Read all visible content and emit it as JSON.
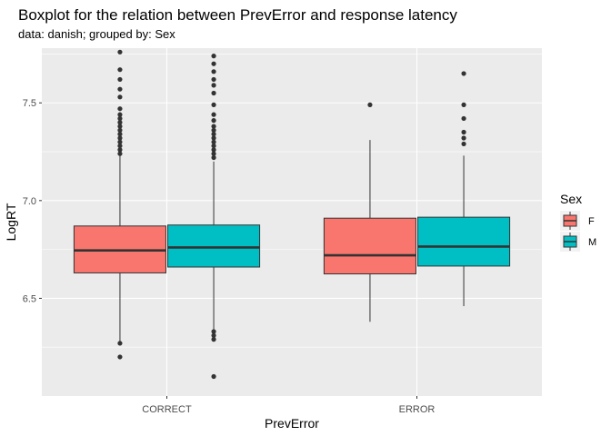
{
  "chart_data": {
    "type": "boxplot",
    "title": "Boxplot for the relation between PrevError and response latency",
    "subtitle": "data: danish; grouped by: Sex",
    "xlabel": "PrevError",
    "ylabel": "LogRT",
    "categories": [
      "CORRECT",
      "ERROR"
    ],
    "ylim": [
      6.0,
      7.78
    ],
    "yticks": [
      6.5,
      7.0,
      7.5
    ],
    "ytick_labels": [
      "6.5",
      "7.0",
      "7.5"
    ],
    "legend": {
      "title": "Sex",
      "position": "right"
    },
    "colors": {
      "panel": "#ebebeb",
      "grid": "#ffffff",
      "outline": "#333333",
      "F": "#f8766d",
      "M": "#00bfc4"
    },
    "series": [
      {
        "name": "F",
        "color": "#f8766d",
        "boxes": [
          {
            "category": "CORRECT",
            "q1": 6.63,
            "median": 6.745,
            "q3": 6.87,
            "whisker_low": 6.27,
            "whisker_high": 7.23,
            "outliers": [
              6.27,
              6.2,
              7.24,
              7.26,
              7.28,
              7.3,
              7.32,
              7.34,
              7.36,
              7.38,
              7.4,
              7.42,
              7.44,
              7.47,
              7.53,
              7.57,
              7.62,
              7.67,
              7.76
            ]
          },
          {
            "category": "ERROR",
            "q1": 6.625,
            "median": 6.72,
            "q3": 6.91,
            "whisker_low": 6.38,
            "whisker_high": 7.31,
            "outliers": [
              7.49
            ]
          }
        ]
      },
      {
        "name": "M",
        "color": "#00bfc4",
        "boxes": [
          {
            "category": "CORRECT",
            "q1": 6.66,
            "median": 6.76,
            "q3": 6.875,
            "whisker_low": 6.34,
            "whisker_high": 7.2,
            "outliers": [
              6.1,
              6.29,
              6.31,
              6.33,
              7.22,
              7.24,
              7.26,
              7.28,
              7.3,
              7.32,
              7.34,
              7.36,
              7.38,
              7.41,
              7.44,
              7.49,
              7.55,
              7.59,
              7.62,
              7.66,
              7.7,
              7.74
            ]
          },
          {
            "category": "ERROR",
            "q1": 6.665,
            "median": 6.765,
            "q3": 6.915,
            "whisker_low": 6.46,
            "whisker_high": 7.23,
            "outliers": [
              7.29,
              7.32,
              7.35,
              7.42,
              7.49,
              7.65
            ]
          }
        ]
      }
    ]
  }
}
